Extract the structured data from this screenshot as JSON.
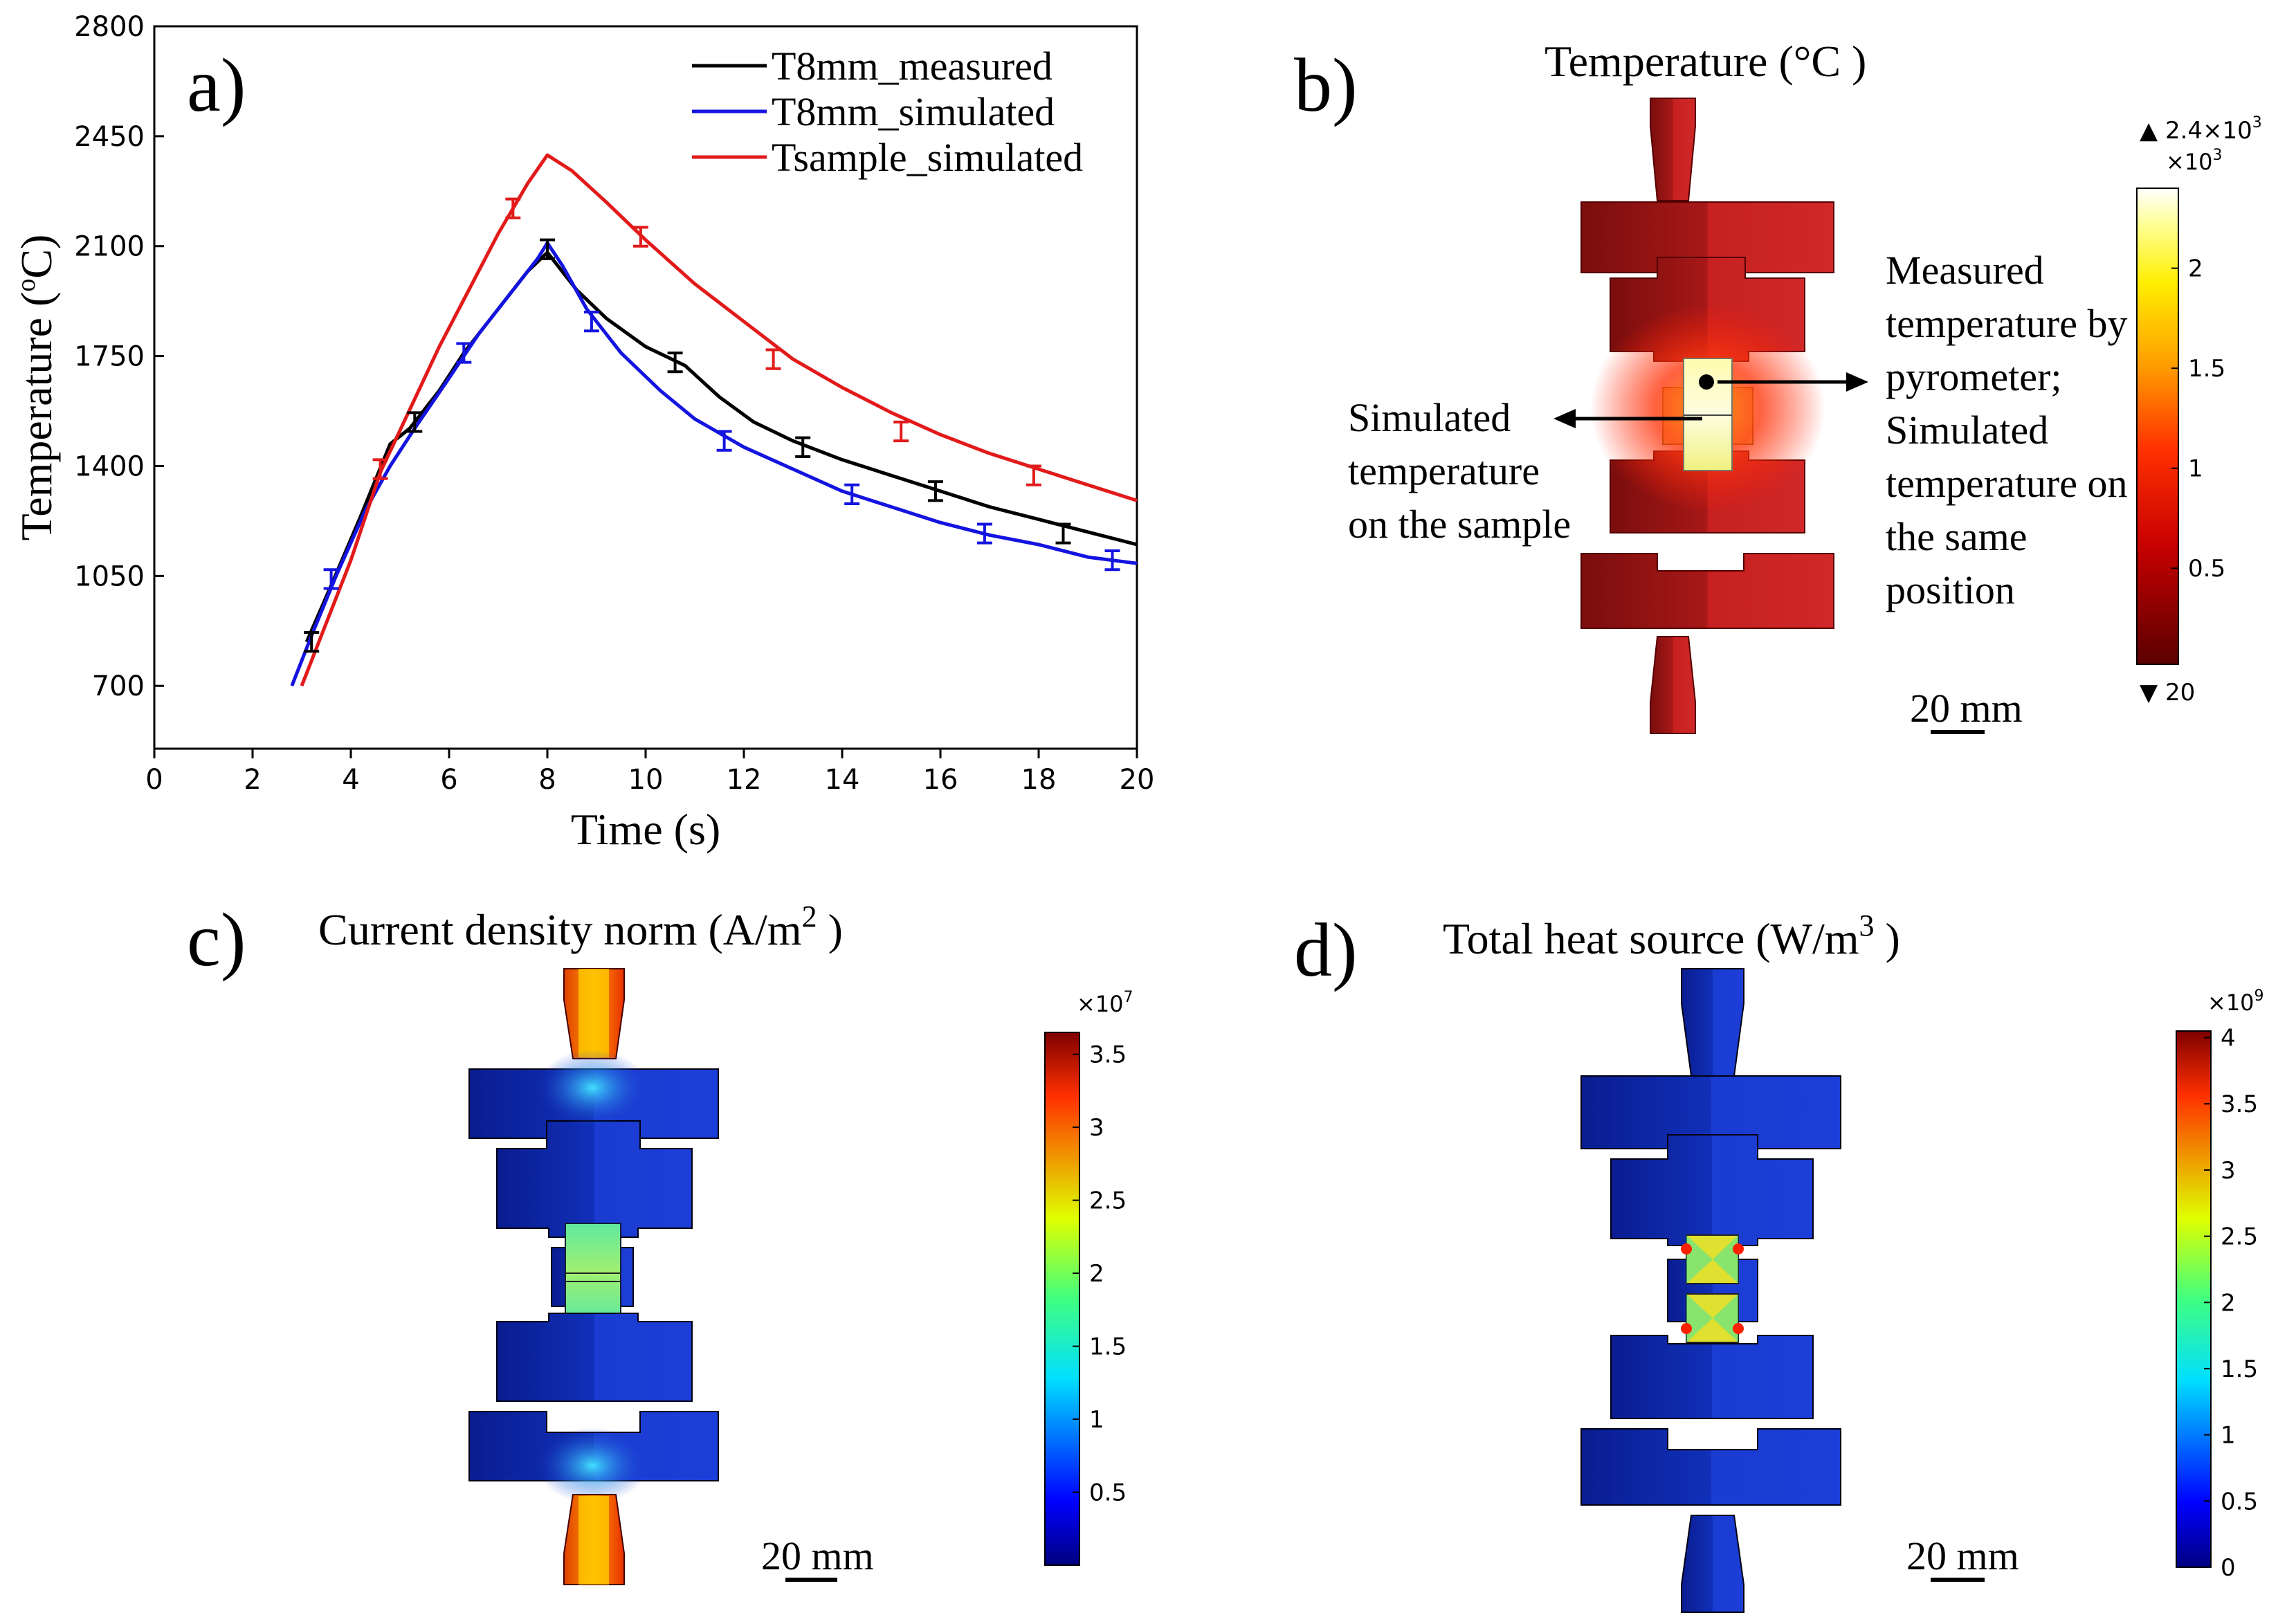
{
  "chart_data": [
    {
      "type": "line",
      "panel_label": "a)",
      "xlabel": "Time (s)",
      "ylabel": "Temperature (°C)",
      "ylabel_base": "Temperature (",
      "ylabel_unit_sup": "o",
      "ylabel_unit": "C)",
      "xlim": [
        0,
        20
      ],
      "ylim": [
        500,
        2800
      ],
      "xticks": [
        0,
        2,
        4,
        6,
        8,
        10,
        12,
        14,
        16,
        18,
        20
      ],
      "yticks": [
        700,
        1050,
        1400,
        1750,
        2100,
        2450,
        2800
      ],
      "legend_position": "top-right",
      "series": [
        {
          "name": "T8mm_measured",
          "color": "#000000",
          "x": [
            3.1,
            3.6,
            4.2,
            4.8,
            5.2,
            5.8,
            6.3,
            7.0,
            7.6,
            8.0,
            8.6,
            9.2,
            10.0,
            10.8,
            11.5,
            12.2,
            13.0,
            14.0,
            15.0,
            16.0,
            17.0,
            18.0,
            19.0,
            20.0
          ],
          "values": [
            840,
            1020,
            1240,
            1470,
            1520,
            1640,
            1760,
            1900,
            2020,
            2080,
            1960,
            1870,
            1780,
            1720,
            1620,
            1540,
            1480,
            1420,
            1370,
            1320,
            1270,
            1230,
            1190,
            1150
          ],
          "errorbars_x": [
            3.2,
            5.3,
            8.0,
            10.6,
            13.2,
            15.9,
            18.5
          ],
          "errorbars_y": [
            840,
            1540,
            2090,
            1730,
            1460,
            1320,
            1185
          ],
          "err": 30
        },
        {
          "name": "T8mm_simulated",
          "color": "#1414e0",
          "x": [
            2.8,
            3.2,
            3.7,
            4.3,
            4.8,
            5.3,
            6.0,
            6.6,
            7.3,
            7.8,
            8.0,
            8.3,
            8.8,
            9.5,
            10.3,
            11.0,
            12.0,
            13.0,
            14.0,
            15.0,
            16.0,
            17.0,
            18.0,
            19.0,
            20.0
          ],
          "values": [
            700,
            860,
            1050,
            1260,
            1400,
            1520,
            1680,
            1820,
            1960,
            2060,
            2110,
            2040,
            1900,
            1760,
            1640,
            1550,
            1460,
            1390,
            1320,
            1270,
            1220,
            1180,
            1150,
            1110,
            1090
          ],
          "errorbars_x": [
            3.6,
            6.3,
            8.9,
            11.6,
            14.2,
            16.9,
            19.5
          ],
          "errorbars_y": [
            1040,
            1760,
            1860,
            1480,
            1310,
            1185,
            1100
          ],
          "err": 30
        },
        {
          "name": "Tsample_simulated",
          "color": "#e21a1a",
          "x": [
            3.0,
            3.5,
            4.0,
            4.6,
            5.2,
            5.8,
            6.4,
            7.0,
            7.6,
            8.0,
            8.5,
            9.2,
            10.0,
            11.0,
            12.0,
            13.0,
            14.0,
            15.0,
            16.0,
            17.0,
            18.0,
            19.0,
            20.0
          ],
          "values": [
            700,
            900,
            1100,
            1380,
            1580,
            1780,
            1960,
            2140,
            2300,
            2390,
            2340,
            2240,
            2120,
            1980,
            1860,
            1740,
            1650,
            1570,
            1500,
            1440,
            1390,
            1340,
            1290
          ],
          "errorbars_x": [
            4.6,
            7.3,
            9.9,
            12.6,
            15.2,
            17.9
          ],
          "errorbars_y": [
            1390,
            2220,
            2130,
            1740,
            1510,
            1370
          ],
          "err": 30
        }
      ]
    },
    {
      "type": "heatmap",
      "panel_label": "b)",
      "title": "Temperature (°C )",
      "colorbar_exponent": "×10",
      "colorbar_exponent_power": "3",
      "colorbar_max_label": "▲ 2.4×10",
      "colorbar_max_power": "3",
      "colorbar_min_label": "▼ 20",
      "colorbar_ticks": [
        "2",
        "1.5",
        "1",
        "0.5"
      ],
      "colorbar_tick_values": [
        2,
        1.5,
        1,
        0.5
      ],
      "colorbar_range": [
        0.02,
        2.4
      ],
      "colormap": "thermal",
      "annotation_left": [
        "Simulated",
        "temperature",
        "on the sample"
      ],
      "annotation_right": [
        "Measured",
        "temperature by",
        "pyrometer;",
        "Simulated",
        "temperature on",
        "the same",
        "position"
      ],
      "scale_bar": "20 mm"
    },
    {
      "type": "heatmap",
      "panel_label": "c)",
      "title": "Current density norm (A/m",
      "title_power": "2",
      "title_end": " )",
      "colorbar_exponent": "×10",
      "colorbar_exponent_power": "7",
      "colorbar_ticks": [
        "3.5",
        "3",
        "2.5",
        "2",
        "1.5",
        "1",
        "0.5"
      ],
      "colorbar_tick_values": [
        3.5,
        3,
        2.5,
        2,
        1.5,
        1,
        0.5
      ],
      "colorbar_range": [
        0,
        3.65
      ],
      "colormap": "rainbow",
      "scale_bar": "20 mm"
    },
    {
      "type": "heatmap",
      "panel_label": "d)",
      "title": "Total heat source (W/m",
      "title_power": "3",
      "title_end": " )",
      "colorbar_exponent": "×10",
      "colorbar_exponent_power": "9",
      "colorbar_ticks": [
        "4",
        "3.5",
        "3",
        "2.5",
        "2",
        "1.5",
        "1",
        "0.5",
        "0"
      ],
      "colorbar_tick_values": [
        4,
        3.5,
        3,
        2.5,
        2,
        1.5,
        1,
        0.5,
        0
      ],
      "colorbar_range": [
        0,
        4.05
      ],
      "colormap": "rainbow",
      "scale_bar": "20 mm"
    }
  ],
  "colors": {
    "axis": "#000000",
    "measured": "#000000",
    "simulated": "#1414e0",
    "sample": "#e21a1a"
  }
}
